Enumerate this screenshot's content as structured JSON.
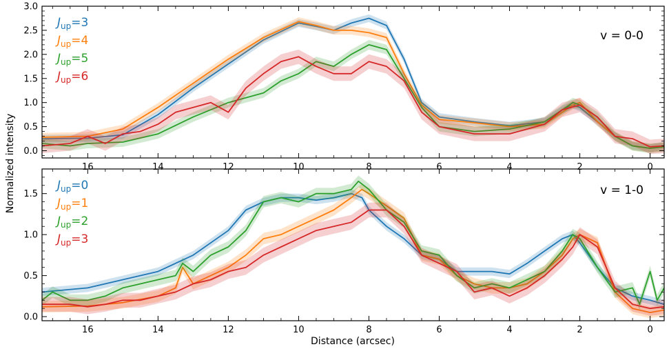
{
  "figure": {
    "xlabel": "Distance (arcsec)",
    "ylabel": "Normalized intensity"
  },
  "colors": {
    "blue": "#1f77b4",
    "orange": "#ff7f0e",
    "green": "#2ca02c",
    "red": "#d62728"
  },
  "chart_data": [
    {
      "type": "line",
      "panel_label": "v = 0-0",
      "xlabel": "Distance (arcsec)",
      "ylabel": "Normalized intensity",
      "xlim": [
        17.3,
        -0.4
      ],
      "ylim": [
        -0.15,
        3.0
      ],
      "x_ticks": [
        16,
        14,
        12,
        10,
        8,
        6,
        4,
        2,
        0
      ],
      "x_tick_labels": [
        "16",
        "14",
        "12",
        "10",
        "8",
        "6",
        "4",
        "2",
        "0"
      ],
      "y_ticks": [
        0.0,
        0.5,
        1.0,
        1.5,
        2.0,
        2.5,
        3.0
      ],
      "y_tick_labels": [
        "0.0",
        "0.5",
        "1.0",
        "1.5",
        "2.0",
        "2.5",
        "3.0"
      ],
      "legend_position": "top-left",
      "series": [
        {
          "name": "J_up=3",
          "legend_main": "J",
          "legend_sub": "up",
          "legend_value": "=3",
          "color": "blue",
          "band": 0.08,
          "x": [
            17.3,
            16,
            15,
            14,
            13,
            12,
            11,
            10,
            9.5,
            9,
            8.5,
            8,
            7.5,
            7,
            6.5,
            6,
            5,
            4,
            3,
            2.5,
            2.2,
            2,
            1.5,
            1,
            0.5,
            0,
            -0.4
          ],
          "y": [
            0.25,
            0.26,
            0.33,
            0.75,
            1.3,
            1.8,
            2.3,
            2.65,
            2.58,
            2.5,
            2.65,
            2.75,
            2.6,
            1.9,
            1.0,
            0.7,
            0.6,
            0.52,
            0.6,
            0.85,
            0.95,
            0.9,
            0.6,
            0.3,
            0.1,
            0.05,
            0.1
          ]
        },
        {
          "name": "J_up=4",
          "legend_main": "J",
          "legend_sub": "up",
          "legend_value": "=4",
          "color": "orange",
          "band": 0.09,
          "x": [
            17.3,
            16,
            15,
            14,
            13,
            12,
            11,
            10,
            9.5,
            9,
            8.5,
            8,
            7.5,
            7,
            6.5,
            6,
            5,
            4,
            3,
            2.5,
            2.2,
            2,
            1.5,
            1,
            0.5,
            0,
            -0.4
          ],
          "y": [
            0.28,
            0.3,
            0.45,
            0.9,
            1.4,
            1.9,
            2.35,
            2.68,
            2.6,
            2.5,
            2.5,
            2.45,
            2.35,
            1.6,
            0.95,
            0.65,
            0.58,
            0.5,
            0.55,
            0.8,
            0.95,
            1.0,
            0.6,
            0.3,
            0.1,
            0.05,
            0.08
          ]
        },
        {
          "name": "J_up=5",
          "legend_main": "J",
          "legend_sub": "up",
          "legend_value": "=5",
          "color": "green",
          "band": 0.1,
          "x": [
            17.3,
            16.5,
            16,
            15,
            14,
            13,
            12,
            11.5,
            11,
            10.5,
            10,
            9.5,
            9,
            8.5,
            8,
            7.5,
            7,
            6.5,
            6,
            5,
            4,
            3,
            2.5,
            2.2,
            2,
            1.5,
            1,
            0.5,
            0,
            -0.4
          ],
          "y": [
            0.15,
            0.1,
            0.15,
            0.18,
            0.35,
            0.7,
            1.0,
            1.1,
            1.2,
            1.45,
            1.6,
            1.85,
            1.75,
            2.0,
            2.2,
            2.1,
            1.5,
            0.9,
            0.5,
            0.4,
            0.45,
            0.6,
            0.85,
            1.0,
            0.95,
            0.7,
            0.3,
            0.1,
            0.05,
            0.08
          ]
        },
        {
          "name": "J_up=6",
          "legend_main": "J",
          "legend_sub": "up",
          "legend_value": "=6",
          "color": "red",
          "band": 0.15,
          "x": [
            17.3,
            16.5,
            16,
            15.5,
            15,
            14.5,
            14,
            13.5,
            13,
            12.5,
            12,
            11.5,
            11,
            10.5,
            10,
            9.5,
            9,
            8.5,
            8,
            7.5,
            7,
            6.5,
            6,
            5,
            4,
            3,
            2.5,
            2,
            1.5,
            1,
            0.5,
            0,
            -0.4
          ],
          "y": [
            0.1,
            0.15,
            0.3,
            0.15,
            0.35,
            0.4,
            0.55,
            0.8,
            0.9,
            1.0,
            0.8,
            1.3,
            1.6,
            1.85,
            1.95,
            1.75,
            1.6,
            1.6,
            1.85,
            1.75,
            1.45,
            0.8,
            0.5,
            0.35,
            0.35,
            0.55,
            0.85,
            0.95,
            0.7,
            0.3,
            0.25,
            0.08,
            0.1
          ]
        }
      ]
    },
    {
      "type": "line",
      "panel_label": "v = 1-0",
      "xlabel": "Distance (arcsec)",
      "ylabel": "Normalized intensity",
      "xlim": [
        17.3,
        -0.4
      ],
      "ylim": [
        -0.05,
        1.8
      ],
      "x_ticks": [
        16,
        14,
        12,
        10,
        8,
        6,
        4,
        2,
        0
      ],
      "x_tick_labels": [
        "16",
        "14",
        "12",
        "10",
        "8",
        "6",
        "4",
        "2",
        "0"
      ],
      "y_ticks": [
        0.0,
        0.5,
        1.0,
        1.5
      ],
      "y_tick_labels": [
        "0.0",
        "0.5",
        "1.0",
        "1.5"
      ],
      "legend_position": "top-left",
      "series": [
        {
          "name": "J_up=0",
          "legend_main": "J",
          "legend_sub": "up",
          "legend_value": "=0",
          "color": "blue",
          "band": 0.05,
          "x": [
            17.3,
            16,
            15,
            14,
            13,
            12,
            11.5,
            11,
            10.5,
            10,
            9.5,
            9,
            8.5,
            8.2,
            8,
            7.5,
            7,
            6.5,
            6,
            5.5,
            5,
            4.5,
            4,
            3.5,
            3,
            2.5,
            2.2,
            2,
            1.5,
            1,
            0.5,
            0,
            -0.4
          ],
          "y": [
            0.3,
            0.35,
            0.45,
            0.55,
            0.75,
            1.05,
            1.3,
            1.4,
            1.45,
            1.45,
            1.42,
            1.45,
            1.5,
            1.45,
            1.3,
            1.1,
            0.95,
            0.75,
            0.7,
            0.55,
            0.55,
            0.55,
            0.52,
            0.65,
            0.8,
            0.95,
            1.0,
            0.9,
            0.6,
            0.35,
            0.25,
            0.2,
            0.15
          ]
        },
        {
          "name": "J_up=1",
          "legend_main": "J",
          "legend_sub": "up",
          "legend_value": "=1",
          "color": "orange",
          "band": 0.07,
          "x": [
            17.3,
            16,
            15,
            14,
            13.5,
            13.3,
            13,
            12.5,
            12,
            11.5,
            11,
            10.5,
            10,
            9.5,
            9,
            8.5,
            8.2,
            8,
            7.5,
            7,
            6.5,
            6,
            5.5,
            5,
            4.5,
            4,
            3.5,
            3,
            2.5,
            2.2,
            2,
            1.5,
            1,
            0.5,
            0,
            -0.4
          ],
          "y": [
            0.12,
            0.13,
            0.17,
            0.25,
            0.35,
            0.6,
            0.4,
            0.5,
            0.6,
            0.75,
            0.95,
            1.0,
            1.1,
            1.2,
            1.3,
            1.45,
            1.55,
            1.5,
            1.35,
            1.2,
            0.75,
            0.7,
            0.5,
            0.4,
            0.35,
            0.35,
            0.4,
            0.55,
            0.75,
            0.95,
            1.0,
            0.9,
            0.3,
            0.1,
            0.05,
            0.08
          ]
        },
        {
          "name": "J_up=2",
          "legend_main": "J",
          "legend_sub": "up",
          "legend_value": "=2",
          "color": "green",
          "band": 0.07,
          "x": [
            17.3,
            17,
            16.5,
            16,
            15.5,
            15,
            14.5,
            14,
            13.5,
            13.3,
            13,
            12.5,
            12,
            11.5,
            11,
            10.5,
            10,
            9.5,
            9,
            8.5,
            8.3,
            8,
            7.5,
            7,
            6.5,
            6,
            5.5,
            5,
            4.5,
            4,
            3.5,
            3,
            2.5,
            2.2,
            2,
            1.5,
            1,
            0.5,
            0.3,
            0,
            -0.2,
            -0.4
          ],
          "y": [
            0.2,
            0.3,
            0.2,
            0.2,
            0.25,
            0.35,
            0.4,
            0.45,
            0.5,
            0.65,
            0.55,
            0.75,
            0.85,
            1.05,
            1.4,
            1.45,
            1.4,
            1.5,
            1.5,
            1.55,
            1.65,
            1.55,
            1.3,
            1.15,
            0.8,
            0.75,
            0.5,
            0.35,
            0.4,
            0.35,
            0.45,
            0.55,
            0.8,
            1.0,
            0.95,
            0.6,
            0.3,
            0.35,
            0.15,
            0.55,
            0.2,
            0.35
          ]
        },
        {
          "name": "J_up=3",
          "legend_main": "J",
          "legend_sub": "up",
          "legend_value": "=3",
          "color": "red",
          "band": 0.09,
          "x": [
            17.3,
            16.5,
            16,
            15.5,
            15,
            14.5,
            14,
            13.5,
            13,
            12.5,
            12,
            11.5,
            11,
            10.5,
            10,
            9.5,
            9,
            8.5,
            8,
            7.5,
            7,
            6.5,
            6,
            5.5,
            5,
            4.5,
            4,
            3.5,
            3,
            2.5,
            2.2,
            2,
            1.5,
            1,
            0.5,
            0,
            -0.4
          ],
          "y": [
            0.15,
            0.15,
            0.12,
            0.15,
            0.2,
            0.2,
            0.25,
            0.3,
            0.4,
            0.45,
            0.55,
            0.6,
            0.75,
            0.85,
            0.95,
            1.05,
            1.1,
            1.15,
            1.3,
            1.3,
            1.1,
            0.75,
            0.65,
            0.55,
            0.3,
            0.35,
            0.25,
            0.35,
            0.5,
            0.7,
            0.85,
            1.0,
            0.85,
            0.35,
            0.15,
            0.1,
            0.12
          ]
        }
      ]
    }
  ]
}
